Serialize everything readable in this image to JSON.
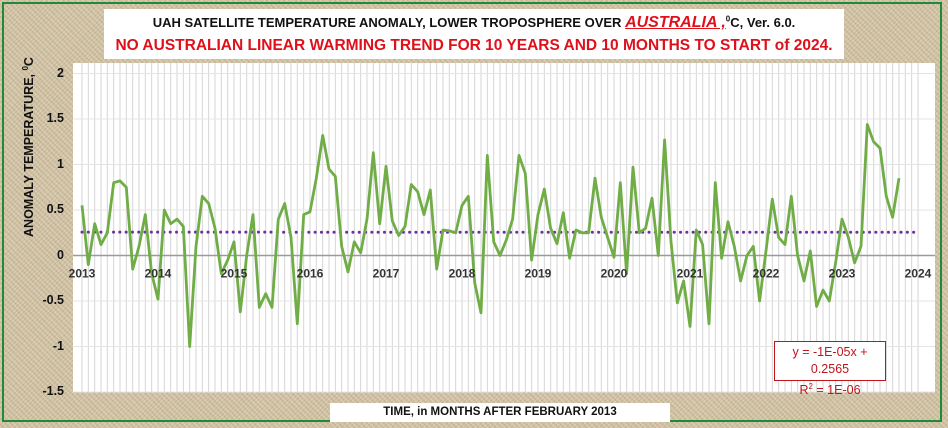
{
  "title": {
    "line1_prefix": "UAH SATELLITE TEMPERATURE ANOMALY, LOWER TROPOSPHERE OVER ",
    "line1_highlight": "AUSTRALIA ,",
    "line1_sup": "0",
    "line1_suffix": "C, Ver. 6.0.",
    "line2": "NO AUSTRALIAN LINEAR WARMING TREND FOR 10 YEARS AND 10 MONTHS TO START of 2024."
  },
  "y_axis_label_text": "ANOMALY TEMPERATURE, ",
  "y_axis_label_sup": "0",
  "y_axis_label_suffix": "C",
  "x_axis_label": "TIME, in MONTHS AFTER FEBRUARY 2013",
  "trend_box": {
    "equation": "y = -1E-05x + 0.2565",
    "r2_prefix": "R",
    "r2_sup": "2",
    "r2_suffix": " = 1E-06"
  },
  "colors": {
    "series": "#70ad47",
    "trend": "#7030a0",
    "title_red": "#e0101a",
    "frame": "#1f8a3a"
  },
  "chart_data": {
    "type": "line",
    "title": "UAH SATELLITE TEMPERATURE ANOMALY, LOWER TROPOSPHERE OVER AUSTRALIA, 0C, Ver. 6.0.",
    "subtitle": "NO AUSTRALIAN LINEAR WARMING TREND FOR 10 YEARS AND 10 MONTHS TO START of 2024.",
    "xlabel": "TIME, in MONTHS AFTER FEBRUARY 2013",
    "ylabel": "ANOMALY TEMPERATURE, 0C",
    "ylim": [
      -1.5,
      2
    ],
    "yticks": [
      "2",
      "1.5",
      "1",
      "0.5",
      "0",
      "-0.5",
      "-1",
      "-1.5"
    ],
    "xlim": [
      2013,
      2024
    ],
    "xtick_labels": [
      "2013",
      "2014",
      "2015",
      "2016",
      "2017",
      "2018",
      "2019",
      "2020",
      "2021",
      "2022",
      "2023",
      "2024"
    ],
    "grid": "vertical lines each month",
    "series": [
      {
        "x_start": 2013.0,
        "step_per_point": 0.08333,
        "values": [
          0.55,
          -0.1,
          0.35,
          0.12,
          0.25,
          0.8,
          0.82,
          0.75,
          -0.15,
          0.1,
          0.45,
          -0.2,
          -0.48,
          0.5,
          0.35,
          0.4,
          0.32,
          -1.0,
          0.1,
          0.65,
          0.57,
          0.3,
          -0.2,
          -0.05,
          0.15,
          -0.62,
          0.0,
          0.45,
          -0.57,
          -0.42,
          -0.57,
          0.4,
          0.57,
          0.2,
          -0.75,
          0.45,
          0.48,
          0.85,
          1.32,
          0.95,
          0.87,
          0.1,
          -0.18,
          0.15,
          0.03,
          0.4,
          1.13,
          0.35,
          0.98,
          0.38,
          0.22,
          0.32,
          0.78,
          0.7,
          0.45,
          0.72,
          -0.15,
          0.28,
          0.27,
          0.25,
          0.55,
          0.65,
          -0.3,
          -0.63,
          1.1,
          0.15,
          0.0,
          0.17,
          0.4,
          1.1,
          0.9,
          -0.05,
          0.45,
          0.73,
          0.3,
          0.13,
          0.47,
          -0.03,
          0.28,
          0.25,
          0.25,
          0.85,
          0.42,
          0.2,
          -0.02,
          0.8,
          -0.2,
          0.97,
          0.25,
          0.3,
          0.63,
          0.0,
          1.27,
          0.15,
          -0.52,
          -0.28,
          -0.78,
          0.28,
          0.12,
          -0.75,
          0.8,
          -0.03,
          0.37,
          0.1,
          -0.28,
          0.0,
          0.1,
          -0.5,
          0.05,
          0.62,
          0.2,
          0.12,
          0.65,
          0.0,
          -0.28,
          0.05,
          -0.56,
          -0.38,
          -0.5,
          -0.08,
          0.4,
          0.2,
          -0.08,
          0.1,
          1.44,
          1.25,
          1.18,
          0.65,
          0.42,
          0.85
        ]
      }
    ],
    "trendline": {
      "label": "y = -1E-05x + 0.2565",
      "slope": -1e-05,
      "intercept": 0.2565,
      "style": "dotted"
    }
  }
}
